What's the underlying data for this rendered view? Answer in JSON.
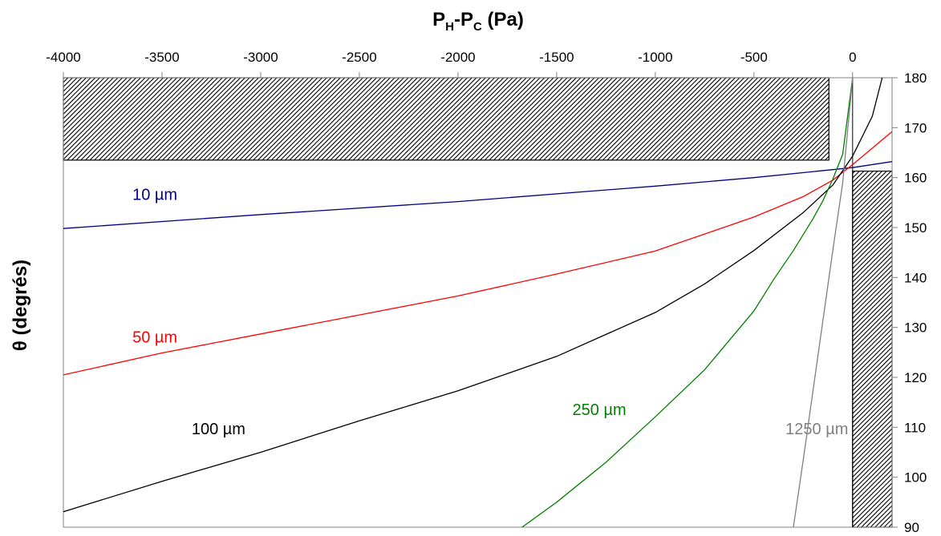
{
  "chart_data": {
    "type": "line",
    "title": "",
    "xlabel": {
      "main": "P",
      "sub1": "H",
      "mid": "-P",
      "sub2": "C",
      "unit": " (Pa)"
    },
    "ylabel": "θ (degrés)",
    "xlim": [
      -4000,
      200
    ],
    "ylim": [
      90,
      180
    ],
    "x_ticks": [
      -4000,
      -3500,
      -3000,
      -2500,
      -2000,
      -1500,
      -1000,
      -500,
      0
    ],
    "x_tick_labels": [
      "-4000",
      "-3500",
      "-3000",
      "-2500",
      "-2000",
      "-1500",
      "-1000",
      "-500",
      "0"
    ],
    "y_ticks": [
      90,
      100,
      110,
      120,
      130,
      140,
      150,
      160,
      170,
      180
    ],
    "y_tick_labels": [
      "90",
      "100",
      "110",
      "120",
      "130",
      "140",
      "150",
      "160",
      "170",
      "180"
    ],
    "hatched_regions": [
      {
        "x": [
          -4000,
          -120
        ],
        "y": [
          163.5,
          180
        ]
      },
      {
        "x": [
          0,
          200
        ],
        "y": [
          90,
          161.3
        ]
      }
    ],
    "series": [
      {
        "name": "10 µm",
        "color": "#000080",
        "x": [
          -4000,
          -3000,
          -2000,
          -1000,
          -500,
          -100,
          0,
          200
        ],
        "y": [
          149.8,
          152.6,
          155.2,
          158.3,
          160.0,
          161.6,
          162.0,
          163.2
        ]
      },
      {
        "name": "50 µm",
        "color": "#ff0000",
        "x": [
          -4000,
          -3500,
          -3000,
          -2500,
          -2000,
          -1500,
          -1000,
          -500,
          -250,
          -100,
          0,
          100,
          200
        ],
        "y": [
          120.5,
          124.9,
          128.7,
          132.5,
          136.3,
          140.7,
          145.3,
          152.1,
          156.2,
          159.5,
          162.6,
          165.9,
          169.2
        ]
      },
      {
        "name": "100 µm",
        "color": "#000000",
        "x": [
          -4000,
          -3500,
          -3000,
          -2500,
          -2000,
          -1500,
          -1000,
          -750,
          -500,
          -250,
          -100,
          0,
          100,
          150
        ],
        "y": [
          93.1,
          99.2,
          105.0,
          111.3,
          117.3,
          124.2,
          133.0,
          138.7,
          145.4,
          153.0,
          158.5,
          164.3,
          172.3,
          180.0
        ]
      },
      {
        "name": "250 µm",
        "color": "#008000",
        "x": [
          -1675,
          -1500,
          -1250,
          -1000,
          -750,
          -500,
          -400,
          -300,
          -200,
          -150,
          -100,
          -50,
          0
        ],
        "y": [
          90.0,
          95.0,
          103.0,
          112.1,
          121.5,
          133.3,
          139.6,
          145.4,
          151.8,
          155.4,
          159.7,
          164.7,
          180.0
        ]
      },
      {
        "name": "1250 µm",
        "color": "#808080",
        "x": [
          -300,
          -250,
          -200,
          -150,
          -100,
          -50,
          0
        ],
        "y": [
          90.0,
          103.5,
          117.5,
          131.5,
          145.5,
          159.0,
          180.0
        ]
      }
    ],
    "series_labels": [
      {
        "text": "10 µm",
        "color": "#000080",
        "x": -3650,
        "y": 155.5
      },
      {
        "text": "50 µm",
        "color": "#ff0000",
        "x": -3650,
        "y": 127.0
      },
      {
        "text": "100 µm",
        "color": "#000000",
        "x": -3350,
        "y": 108.6
      },
      {
        "text": "250 µm",
        "color": "#008000",
        "x": -1420,
        "y": 112.5
      },
      {
        "text": "1250 µm",
        "color": "#808080",
        "x": -340,
        "y": 108.6
      }
    ],
    "grid": false
  }
}
